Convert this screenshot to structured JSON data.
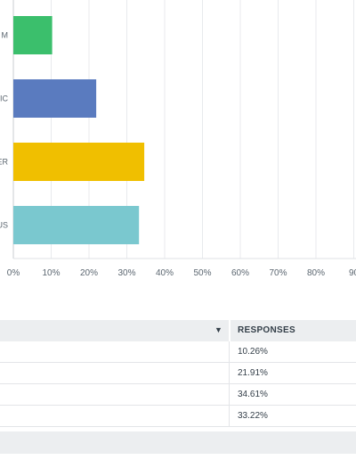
{
  "chart_data": {
    "type": "bar",
    "orientation": "horizontal",
    "categories": [
      "M",
      "IC",
      "ER",
      "US"
    ],
    "values": [
      10.26,
      21.91,
      34.61,
      33.22
    ],
    "colors": [
      "#3bbf6c",
      "#5a7bbf",
      "#f0bf00",
      "#7ac8cf"
    ],
    "xticks": [
      "0%",
      "10%",
      "20%",
      "30%",
      "40%",
      "50%",
      "60%",
      "70%",
      "80%",
      "90"
    ],
    "xlim": [
      0,
      90
    ],
    "grid": true
  },
  "table": {
    "sort_icon": "sort-down-icon",
    "header": "RESPONSES",
    "rows": [
      "10.26%",
      "21.91%",
      "34.61%",
      "33.22%"
    ]
  }
}
